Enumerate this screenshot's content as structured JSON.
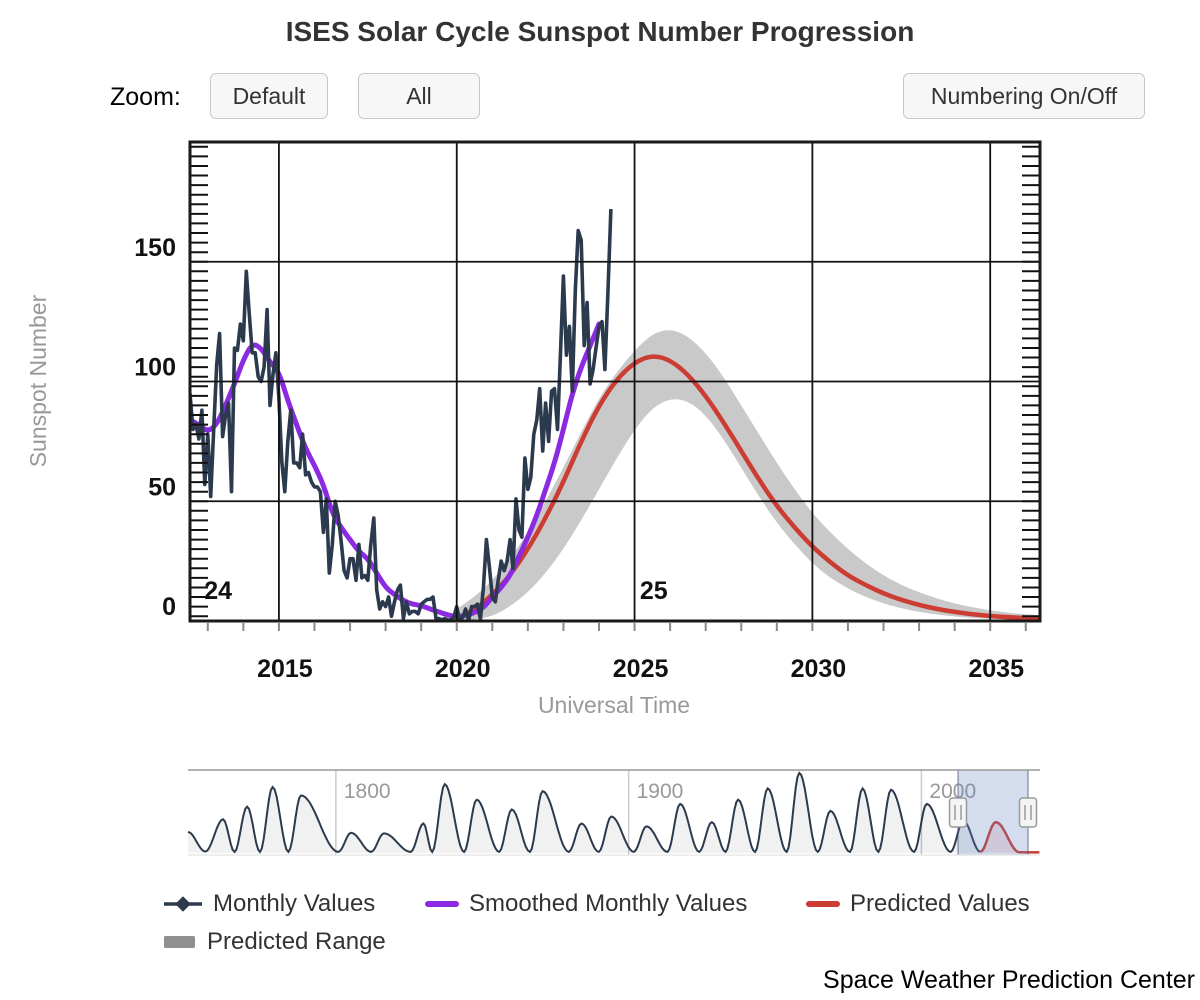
{
  "page": {
    "title": "ISES Solar Cycle Sunspot Number Progression",
    "source_credit": "Space Weather Prediction Center"
  },
  "controls": {
    "zoom_label": "Zoom:",
    "default_button": "Default",
    "all_button": "All",
    "numbering_button": "Numbering On/Off"
  },
  "legend": {
    "items": [
      {
        "label": "Monthly Values",
        "marker": "line-with-diamond"
      },
      {
        "label": "Smoothed Monthly Values",
        "marker": "line"
      },
      {
        "label": "Predicted Values",
        "marker": "line"
      },
      {
        "label": "Predicted Range",
        "marker": "band"
      }
    ]
  },
  "chart_data": {
    "type": "line",
    "title": "ISES Solar Cycle Sunspot Number Progression",
    "xlabel": "Universal Time",
    "ylabel": "Sunspot Number",
    "xlim": [
      2012.5,
      2036.4
    ],
    "ylim": [
      0,
      200
    ],
    "xticks": [
      2015,
      2020,
      2025,
      2030,
      2035
    ],
    "yticks": [
      0,
      50,
      100,
      150
    ],
    "grid": true,
    "legend_position": "bottom",
    "colors": {
      "monthly": "#2c3a4e",
      "smoothed": "#8a2be2",
      "predicted": "#cb3c33",
      "range_band": "#c9c9c9",
      "range_legend": "#909090",
      "grid": "#111111",
      "tick_labels": "#111111",
      "axis_titles": "#999999",
      "navigator_mask": "rgba(102,133,194,0.28)"
    },
    "annotations": [
      {
        "label": "24",
        "x": 2012.9,
        "y": 13
      },
      {
        "label": "25",
        "x": 2025.15,
        "y": 13
      }
    ],
    "series": [
      {
        "name": "Monthly Values",
        "start_year": 2012.5,
        "step_months": 1,
        "values": [
          95,
          80,
          82,
          76,
          88,
          57,
          78,
          52,
          80,
          107,
          120,
          77,
          86,
          91,
          54,
          114,
          113,
          124,
          117,
          146,
          128,
          112,
          112,
          102,
          100,
          106,
          130,
          90,
          103,
          112,
          93,
          66,
          54,
          75,
          88,
          66,
          66,
          64,
          78,
          61,
          62,
          58,
          56,
          56,
          54,
          37,
          51,
          20,
          32,
          50,
          44,
          33,
          21,
          18,
          26,
          26,
          17,
          32,
          18,
          19,
          17,
          32,
          43,
          13,
          5,
          8,
          6,
          10,
          2,
          8,
          13,
          15,
          1,
          8,
          3,
          4,
          4,
          3,
          7,
          8,
          9,
          9,
          10,
          1,
          1,
          0.5,
          1,
          0.4,
          0.5,
          1.5,
          6,
          0.2,
          1.5,
          5,
          0.2,
          6,
          6,
          7,
          0.6,
          14,
          34,
          23,
          10,
          8,
          17,
          25,
          21,
          25,
          34,
          22,
          51,
          38,
          35,
          68,
          55,
          60,
          78,
          84,
          97,
          71,
          91,
          75,
          96,
          97,
          80,
          112,
          144,
          111,
          123,
          96,
          138,
          163,
          159,
          115,
          133,
          99,
          105,
          114,
          123,
          125,
          105,
          137,
          172
        ]
      },
      {
        "name": "Smoothed Monthly Values",
        "start_year": 2012.5,
        "step_months": 3,
        "values": [
          84,
          82,
          79,
          82,
          90,
          99,
          109,
          116,
          114,
          108,
          104,
          92,
          82,
          72,
          65,
          57,
          45,
          39,
          34,
          29,
          26,
          20,
          14,
          11,
          8.5,
          7,
          6.5,
          5,
          3.8,
          2.5,
          1.8,
          2.3,
          3.5,
          5.5,
          10,
          14,
          19,
          27,
          35,
          44,
          55,
          66,
          80,
          95,
          106,
          115,
          124
        ]
      },
      {
        "name": "Predicted Values",
        "start_year": 2020.0,
        "step_months": 6,
        "values": [
          1,
          4.5,
          11,
          19,
          30,
          43,
          58,
          75,
          90,
          101,
          108,
          111,
          109,
          103,
          94,
          83,
          71,
          59,
          48,
          39,
          31,
          24.5,
          19,
          15,
          11.5,
          8.8,
          6.7,
          5,
          3.8,
          2.8,
          2.1,
          1.6,
          1.2,
          1
        ]
      },
      {
        "name": "Predicted Range",
        "start_year": 2020.0,
        "step_months": 6,
        "upper": [
          5,
          10,
          17,
          26,
          37,
          50,
          64,
          79,
          93,
          104,
          113,
          120,
          122,
          119,
          112,
          102,
          90,
          78,
          66,
          55,
          45,
          37,
          30,
          24,
          19,
          15,
          12,
          9.4,
          7.3,
          5.7,
          4.4,
          3.5,
          2.8,
          2.3
        ],
        "lower": [
          0,
          0.5,
          2,
          6,
          12,
          20,
          30,
          42,
          55,
          68,
          80,
          89,
          93,
          92,
          86,
          76,
          64,
          52,
          41,
          32,
          24,
          18,
          13.5,
          10,
          7.3,
          5.3,
          3.8,
          2.7,
          1.9,
          1.3,
          0.9,
          0.6,
          0.4,
          0.3
        ]
      }
    ],
    "navigator": {
      "xlim": [
        1749.5,
        2040.5
      ],
      "tick_years": [
        1800,
        1900,
        2000
      ],
      "tick_labels": [
        "1800",
        "1900",
        "2000"
      ],
      "selected_range": [
        2012.5,
        2036.4
      ],
      "lead_in": {
        "year": 1749.5,
        "value": 75,
        "min_year": 1755.4
      },
      "historical_cycles": [
        {
          "peak_year": 1761.5,
          "peak_value": 120
        },
        {
          "peak_year": 1769.7,
          "peak_value": 165
        },
        {
          "peak_year": 1778.4,
          "peak_value": 235
        },
        {
          "peak_year": 1788.1,
          "peak_value": 205
        },
        {
          "peak_year": 1805.2,
          "peak_value": 72
        },
        {
          "peak_year": 1816.4,
          "peak_value": 70
        },
        {
          "peak_year": 1829.9,
          "peak_value": 105
        },
        {
          "peak_year": 1837.2,
          "peak_value": 245
        },
        {
          "peak_year": 1848.1,
          "peak_value": 190
        },
        {
          "peak_year": 1860.1,
          "peak_value": 155
        },
        {
          "peak_year": 1870.6,
          "peak_value": 220
        },
        {
          "peak_year": 1883.9,
          "peak_value": 105
        },
        {
          "peak_year": 1894.1,
          "peak_value": 130
        },
        {
          "peak_year": 1906.1,
          "peak_value": 95
        },
        {
          "peak_year": 1917.6,
          "peak_value": 175
        },
        {
          "peak_year": 1928.4,
          "peak_value": 110
        },
        {
          "peak_year": 1937.4,
          "peak_value": 190
        },
        {
          "peak_year": 1947.5,
          "peak_value": 230
        },
        {
          "peak_year": 1958.3,
          "peak_value": 285
        },
        {
          "peak_year": 1968.9,
          "peak_value": 150
        },
        {
          "peak_year": 1979.9,
          "peak_value": 230
        },
        {
          "peak_year": 1989.6,
          "peak_value": 225
        },
        {
          "peak_year": 2001.8,
          "peak_value": 175
        },
        {
          "peak_year": 2014.3,
          "peak_value": 115
        }
      ],
      "predicted_cycle": {
        "start_year": 2020.1,
        "peak_year": 2025.4,
        "peak_value": 110,
        "end_year": 2040.3
      }
    }
  }
}
